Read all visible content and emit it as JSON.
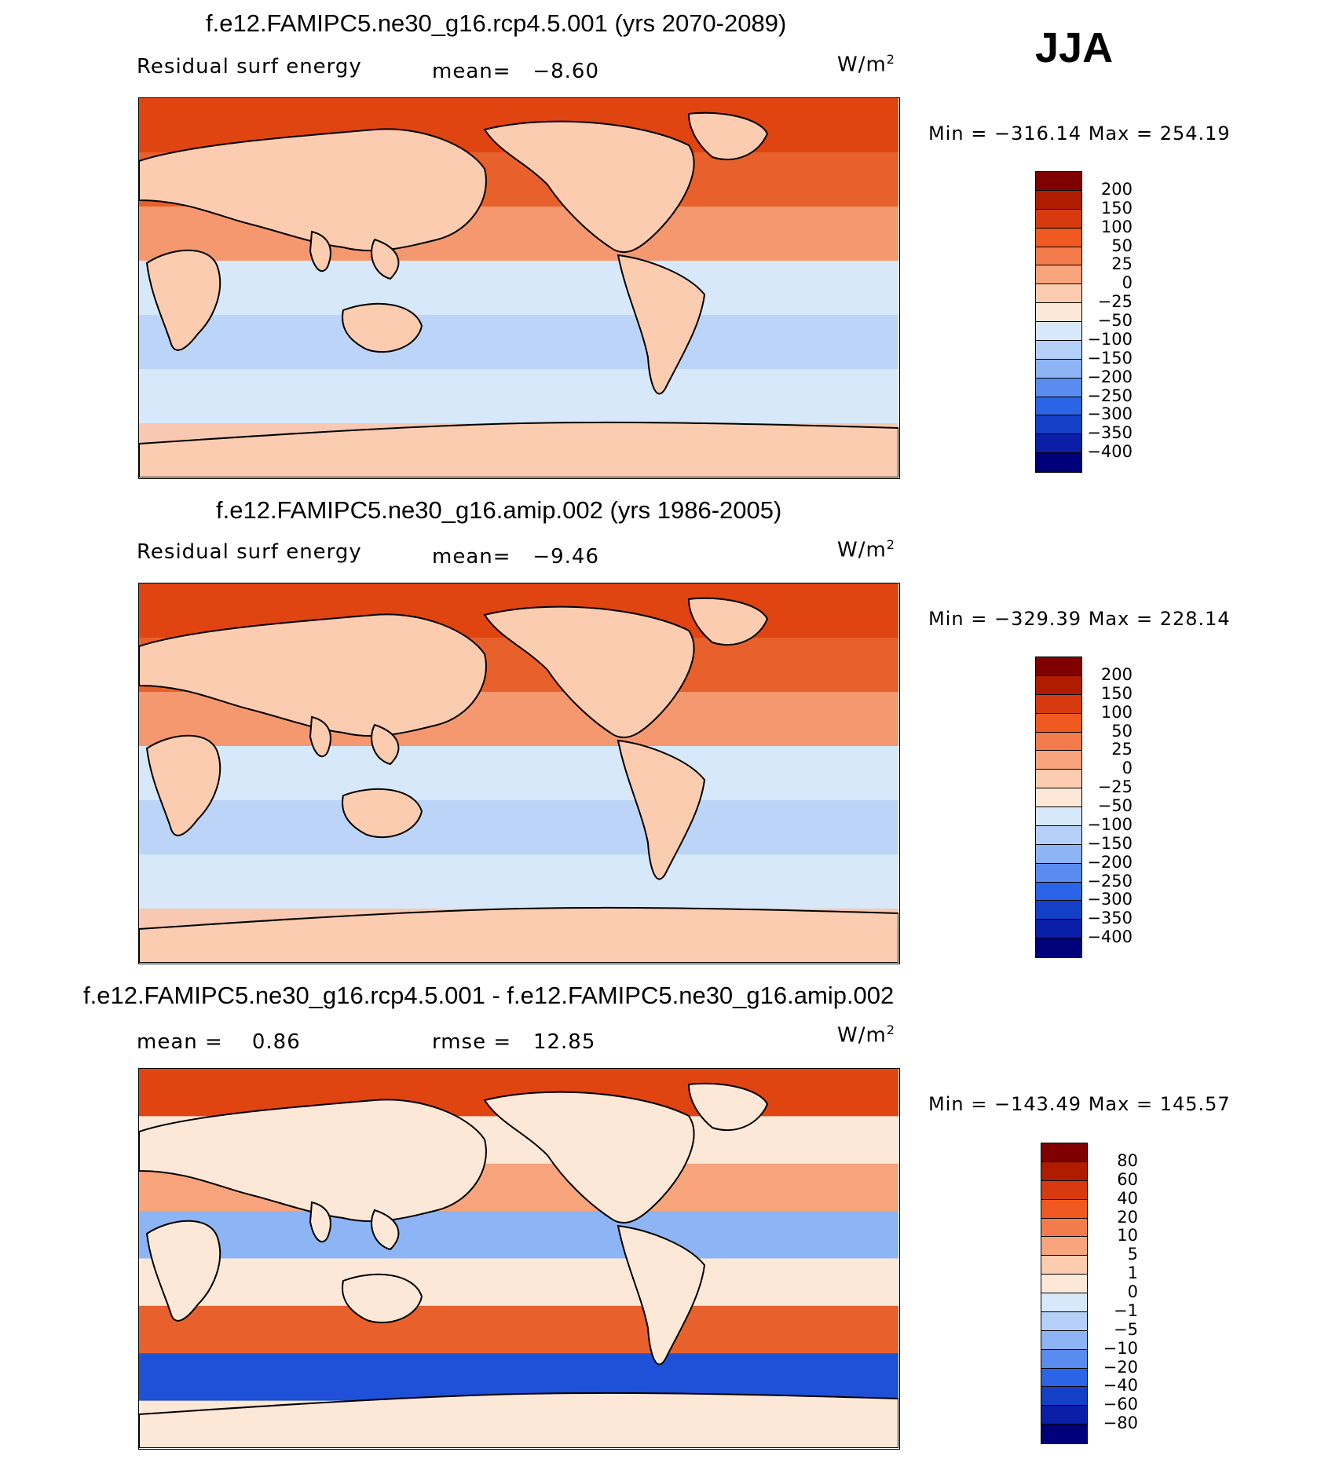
{
  "season": "JJA",
  "colors": {
    "abs_scale": [
      "#f2e6d9",
      "#ffffff"
    ],
    "coast": "#000000"
  },
  "panels": [
    {
      "title": "f.e12.FAMIPC5.ne30_g16.rcp4.5.001 (yrs 2070-2089)",
      "left_label": "Residual surf energy",
      "stat_label": "mean=",
      "stat_value": "−8.60",
      "unit": "W/m",
      "unit_exp": "2",
      "min_label": "Min",
      "min_value": "−316.14",
      "max_label": "Max",
      "max_value": "254.19"
    },
    {
      "title": "f.e12.FAMIPC5.ne30_g16.amip.002 (yrs 1986-2005)",
      "left_label": "Residual surf energy",
      "stat_label": "mean=",
      "stat_value": "−9.46",
      "unit": "W/m",
      "unit_exp": "2",
      "min_label": "Min",
      "min_value": "−329.39",
      "max_label": "Max",
      "max_value": "228.14"
    },
    {
      "title": "f.e12.FAMIPC5.ne30_g16.rcp4.5.001 - f.e12.FAMIPC5.ne30_g16.amip.002",
      "left_label": "mean =",
      "left_value": "0.86",
      "stat_label": "rmse =",
      "stat_value": "12.85",
      "unit": "W/m",
      "unit_exp": "2",
      "min_label": "Min",
      "min_value": "−143.49",
      "max_label": "Max",
      "max_value": "145.57"
    }
  ],
  "chart_data": [
    {
      "type": "heatmap",
      "title": "f.e12.FAMIPC5.ne30_g16.rcp4.5.001 (yrs 2070-2089)",
      "variable": "Residual surf energy",
      "units": "W/m2",
      "mean": -8.6,
      "min": -316.14,
      "max": 254.19,
      "colorbar_levels": [
        "200",
        "150",
        "100",
        "50",
        "25",
        "0",
        "−25",
        "−50",
        "−100",
        "−150",
        "−200",
        "−250",
        "−300",
        "−350",
        "−400"
      ],
      "colorbar_colors": [
        "#800000",
        "#b01c00",
        "#d83a10",
        "#f05a20",
        "#f47c4c",
        "#f8a47c",
        "#fbccb0",
        "#fde8d8",
        "#d6e8fa",
        "#b4d0f8",
        "#8db4f4",
        "#5a8cf0",
        "#2c64e8",
        "#1440c8",
        "#0a1ea8",
        "#00007a"
      ]
    },
    {
      "type": "heatmap",
      "title": "f.e12.FAMIPC5.ne30_g16.amip.002 (yrs 1986-2005)",
      "variable": "Residual surf energy",
      "units": "W/m2",
      "mean": -9.46,
      "min": -329.39,
      "max": 228.14,
      "colorbar_levels": [
        "200",
        "150",
        "100",
        "50",
        "25",
        "0",
        "−25",
        "−50",
        "−100",
        "−150",
        "−200",
        "−250",
        "−300",
        "−350",
        "−400"
      ],
      "colorbar_colors": [
        "#800000",
        "#b01c00",
        "#d83a10",
        "#f05a20",
        "#f47c4c",
        "#f8a47c",
        "#fbccb0",
        "#fde8d8",
        "#d6e8fa",
        "#b4d0f8",
        "#8db4f4",
        "#5a8cf0",
        "#2c64e8",
        "#1440c8",
        "#0a1ea8",
        "#00007a"
      ]
    },
    {
      "type": "heatmap",
      "title": "f.e12.FAMIPC5.ne30_g16.rcp4.5.001 - f.e12.FAMIPC5.ne30_g16.amip.002",
      "units": "W/m2",
      "mean": 0.86,
      "rmse": 12.85,
      "min": -143.49,
      "max": 145.57,
      "colorbar_levels": [
        "80",
        "60",
        "40",
        "20",
        "10",
        "5",
        "1",
        "0",
        "−1",
        "−5",
        "−10",
        "−20",
        "−40",
        "−60",
        "−80"
      ],
      "colorbar_colors": [
        "#800000",
        "#b01c00",
        "#d83a10",
        "#f05a20",
        "#f47c4c",
        "#f8a47c",
        "#fbccb0",
        "#fde8d8",
        "#d6e8fa",
        "#b4d0f8",
        "#8db4f4",
        "#5a8cf0",
        "#2c64e8",
        "#1440c8",
        "#0a1ea8",
        "#00007a"
      ]
    }
  ]
}
